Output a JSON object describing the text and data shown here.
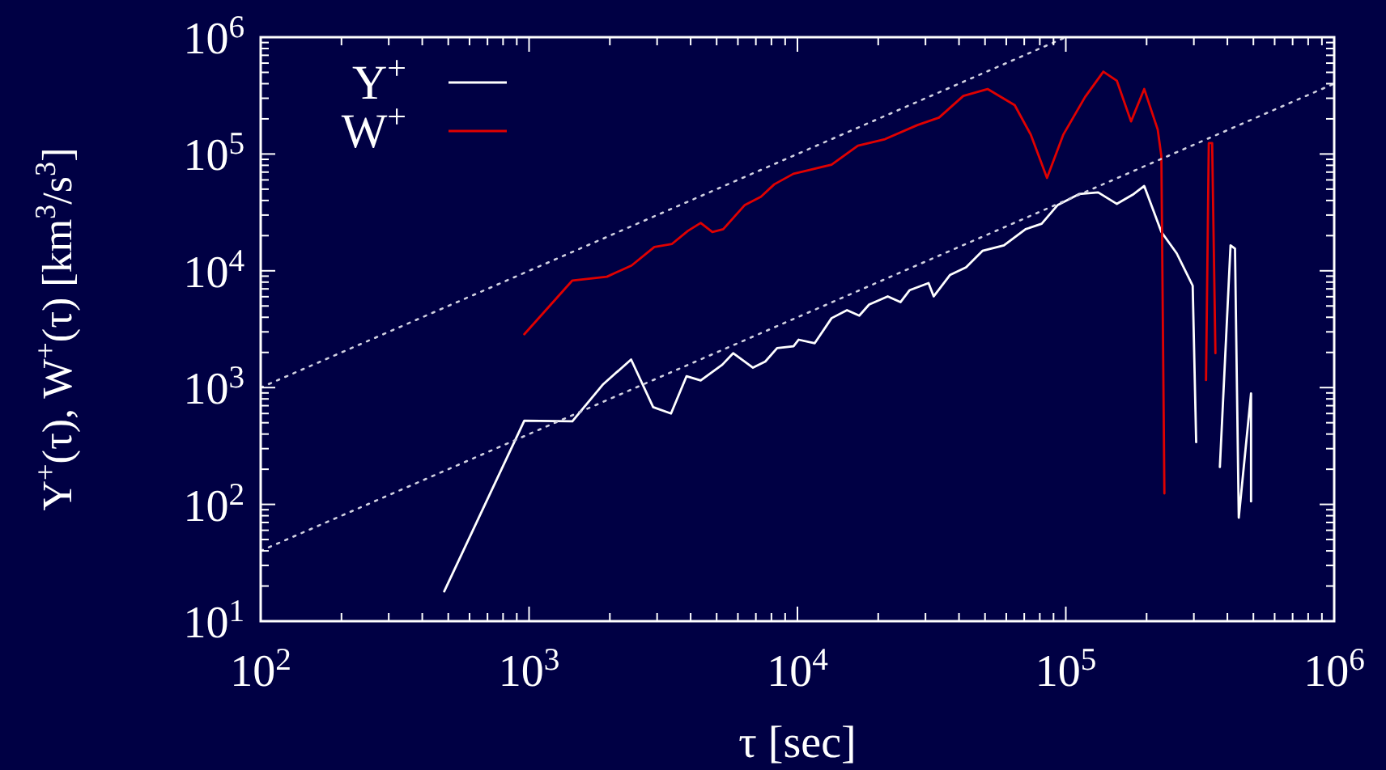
{
  "chart_data": {
    "type": "line",
    "xlabel": "τ [sec]",
    "ylabel": "Y$^{+}$(τ), W$^{+}$(τ) [km$^{3}$/s$^{3}$]",
    "log": "xy",
    "grid": false,
    "legend": "top left",
    "xlim": [
      100,
      1000000
    ],
    "ylim": [
      10,
      1000000
    ],
    "xticks": [
      {
        "value": 100,
        "label": "10$^{2}$"
      },
      {
        "value": 200,
        "label": null
      },
      {
        "value": 300,
        "label": null
      },
      {
        "value": 400,
        "label": null
      },
      {
        "value": 500,
        "label": null
      },
      {
        "value": 600,
        "label": null
      },
      {
        "value": 700,
        "label": null
      },
      {
        "value": 800,
        "label": null
      },
      {
        "value": 900,
        "label": null
      },
      {
        "value": 1000,
        "label": "10$^{3}$"
      },
      {
        "value": 2000,
        "label": null
      },
      {
        "value": 3000,
        "label": null
      },
      {
        "value": 4000,
        "label": null
      },
      {
        "value": 5000,
        "label": null
      },
      {
        "value": 6000,
        "label": null
      },
      {
        "value": 7000,
        "label": null
      },
      {
        "value": 8000,
        "label": null
      },
      {
        "value": 9000,
        "label": null
      },
      {
        "value": 10000,
        "label": "10$^{4}$"
      },
      {
        "value": 20000,
        "label": null
      },
      {
        "value": 30000,
        "label": null
      },
      {
        "value": 40000,
        "label": null
      },
      {
        "value": 50000,
        "label": null
      },
      {
        "value": 60000,
        "label": null
      },
      {
        "value": 70000,
        "label": null
      },
      {
        "value": 80000,
        "label": null
      },
      {
        "value": 90000,
        "label": null
      },
      {
        "value": 100000,
        "label": "10$^{5}$"
      },
      {
        "value": 200000,
        "label": null
      },
      {
        "value": 300000,
        "label": null
      },
      {
        "value": 400000,
        "label": null
      },
      {
        "value": 500000,
        "label": null
      },
      {
        "value": 600000,
        "label": null
      },
      {
        "value": 700000,
        "label": null
      },
      {
        "value": 800000,
        "label": null
      },
      {
        "value": 900000,
        "label": null
      },
      {
        "value": 1000000,
        "label": "10$^{6}$"
      }
    ],
    "yticks": [
      {
        "value": 10,
        "label": "10$^{1}$"
      },
      {
        "value": 20,
        "label": null
      },
      {
        "value": 30,
        "label": null
      },
      {
        "value": 40,
        "label": null
      },
      {
        "value": 50,
        "label": null
      },
      {
        "value": 60,
        "label": null
      },
      {
        "value": 70,
        "label": null
      },
      {
        "value": 80,
        "label": null
      },
      {
        "value": 90,
        "label": null
      },
      {
        "value": 100,
        "label": "10$^{2}$"
      },
      {
        "value": 200,
        "label": null
      },
      {
        "value": 300,
        "label": null
      },
      {
        "value": 400,
        "label": null
      },
      {
        "value": 500,
        "label": null
      },
      {
        "value": 600,
        "label": null
      },
      {
        "value": 700,
        "label": null
      },
      {
        "value": 800,
        "label": null
      },
      {
        "value": 900,
        "label": null
      },
      {
        "value": 1000,
        "label": "10$^{3}$"
      },
      {
        "value": 2000,
        "label": null
      },
      {
        "value": 3000,
        "label": null
      },
      {
        "value": 4000,
        "label": null
      },
      {
        "value": 5000,
        "label": null
      },
      {
        "value": 6000,
        "label": null
      },
      {
        "value": 7000,
        "label": null
      },
      {
        "value": 8000,
        "label": null
      },
      {
        "value": 9000,
        "label": null
      },
      {
        "value": 10000,
        "label": "10$^{4}$"
      },
      {
        "value": 20000,
        "label": null
      },
      {
        "value": 30000,
        "label": null
      },
      {
        "value": 40000,
        "label": null
      },
      {
        "value": 50000,
        "label": null
      },
      {
        "value": 60000,
        "label": null
      },
      {
        "value": 70000,
        "label": null
      },
      {
        "value": 80000,
        "label": null
      },
      {
        "value": 90000,
        "label": null
      },
      {
        "value": 100000,
        "label": "10$^{5}$"
      },
      {
        "value": 200000,
        "label": null
      },
      {
        "value": 300000,
        "label": null
      },
      {
        "value": 400000,
        "label": null
      },
      {
        "value": 500000,
        "label": null
      },
      {
        "value": 600000,
        "label": null
      },
      {
        "value": 700000,
        "label": null
      },
      {
        "value": 800000,
        "label": null
      },
      {
        "value": 900000,
        "label": null
      },
      {
        "value": 1000000,
        "label": "10$^{6}$"
      }
    ],
    "series": [
      {
        "name": "Y$^{+}$",
        "color": "#ffffff",
        "x": [
          483,
          960,
          1450,
          1890,
          2400,
          2900,
          3380,
          3860,
          4360,
          5250,
          5760,
          6830,
          7590,
          8400,
          9670,
          10100,
          11600,
          13400,
          15300,
          17000,
          18500,
          21700,
          24200,
          26200,
          30800,
          32200,
          37000,
          42500,
          48900,
          58800,
          70800,
          81300,
          93300,
          112000,
          132000,
          155000,
          179000,
          196000,
          227000,
          259000,
          284000,
          297000,
          306000,
          340000,
          375000,
          411000,
          427000,
          441000,
          490000,
          490000
        ],
        "values": [
          18,
          520,
          515,
          1070,
          1740,
          680,
          600,
          1250,
          1150,
          1570,
          1970,
          1480,
          1670,
          2180,
          2260,
          2570,
          2400,
          3930,
          4600,
          4130,
          5140,
          6040,
          5390,
          6830,
          7850,
          6040,
          9200,
          10700,
          14800,
          16500,
          22700,
          25300,
          36600,
          45400,
          46900,
          37400,
          45400,
          53200,
          21500,
          14100,
          9200,
          7450,
          341,
          null,
          209,
          16500,
          15500,
          77,
          890,
          106
        ]
      },
      {
        "name": "W$^{+}$",
        "color": "#e00000",
        "x": [
          960,
          1450,
          1950,
          2410,
          2930,
          3410,
          3910,
          4360,
          4820,
          5290,
          6370,
          7310,
          8200,
          9660,
          11100,
          13400,
          16800,
          21200,
          28000,
          33700,
          41500,
          51100,
          64500,
          74100,
          85100,
          97800,
          118000,
          138000,
          155000,
          175000,
          196000,
          220000,
          227000,
          233000,
          290000,
          333000,
          341000,
          351000,
          361000
        ],
        "values": [
          2860,
          8260,
          8900,
          11100,
          16000,
          17000,
          22000,
          25700,
          21500,
          22700,
          36600,
          43000,
          55000,
          67700,
          73100,
          81000,
          118000,
          134000,
          177000,
          205000,
          314000,
          360000,
          262000,
          146000,
          62400,
          146000,
          308000,
          507000,
          423000,
          190000,
          360000,
          162000,
          95900,
          124,
          null,
          1160,
          124000,
          124000,
          1970
        ]
      },
      {
        "color": "#d0d0e0",
        "line_style": "dotted",
        "x": [
          100,
          100000
        ],
        "values": [
          1000,
          1000000
        ]
      },
      {
        "color": "#d0d0e0",
        "line_style": "dotted",
        "x": [
          100,
          1000000
        ],
        "values": [
          40,
          400000
        ]
      }
    ]
  }
}
